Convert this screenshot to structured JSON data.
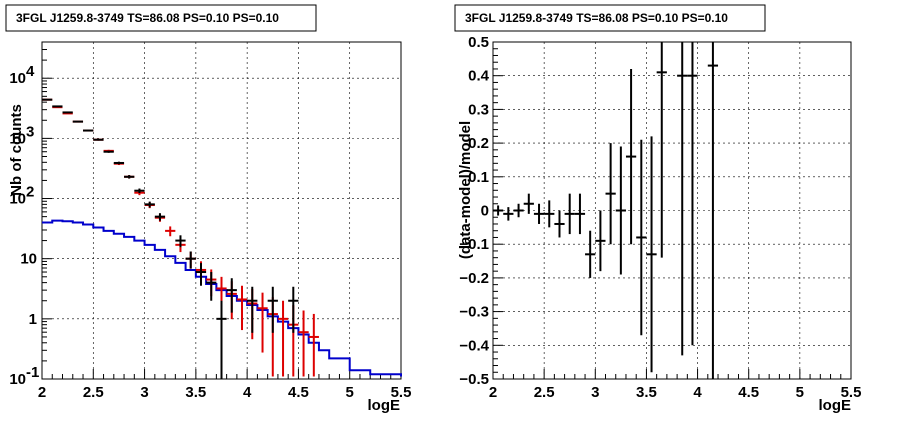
{
  "chart_data": [
    {
      "type": "scatter",
      "title": "3FGL J1259.8-3749 TS=86.08 PS=0.10 PS=0.10",
      "xlabel": "logE",
      "ylabel": "Nb of counts",
      "xlim": [
        2,
        5.5
      ],
      "ylim": [
        0.1,
        40000
      ],
      "yscale": "log",
      "grid": true,
      "x_ticks": [
        "2",
        "2.5",
        "3",
        "3.5",
        "4",
        "4.5",
        "5",
        "5.5"
      ],
      "y_ticks": [
        "10^-1",
        "1",
        "10",
        "10^2",
        "10^3",
        "10^4"
      ],
      "series": [
        {
          "kind": "data-with-errors",
          "color": "#000000",
          "points": [
            {
              "x": 2.05,
              "y": 4400
            },
            {
              "x": 2.15,
              "y": 3400
            },
            {
              "x": 2.25,
              "y": 2700
            },
            {
              "x": 2.35,
              "y": 1900
            },
            {
              "x": 2.45,
              "y": 1350
            },
            {
              "x": 2.55,
              "y": 950
            },
            {
              "x": 2.65,
              "y": 600
            },
            {
              "x": 2.75,
              "y": 390
            },
            {
              "x": 2.85,
              "y": 230
            },
            {
              "x": 2.95,
              "y": 135
            },
            {
              "x": 3.05,
              "y": 80
            },
            {
              "x": 3.15,
              "y": 50
            },
            {
              "x": 3.35,
              "y": 20
            },
            {
              "x": 3.45,
              "y": 10
            },
            {
              "x": 3.55,
              "y": 6
            },
            {
              "x": 3.65,
              "y": 4
            },
            {
              "x": 3.75,
              "y": 1
            },
            {
              "x": 3.85,
              "y": 3
            },
            {
              "x": 4.05,
              "y": 2
            },
            {
              "x": 4.25,
              "y": 2
            },
            {
              "x": 4.45,
              "y": 2
            }
          ]
        },
        {
          "kind": "model-points",
          "color": "#dd0000",
          "points": [
            {
              "x": 2.05,
              "y": 4400
            },
            {
              "x": 2.15,
              "y": 3300
            },
            {
              "x": 2.25,
              "y": 2600
            },
            {
              "x": 2.35,
              "y": 1900
            },
            {
              "x": 2.45,
              "y": 1350
            },
            {
              "x": 2.55,
              "y": 950
            },
            {
              "x": 2.65,
              "y": 620
            },
            {
              "x": 2.75,
              "y": 380
            },
            {
              "x": 2.85,
              "y": 230
            },
            {
              "x": 2.95,
              "y": 125
            },
            {
              "x": 3.05,
              "y": 78
            },
            {
              "x": 3.15,
              "y": 48
            },
            {
              "x": 3.25,
              "y": 29
            },
            {
              "x": 3.35,
              "y": 17
            },
            {
              "x": 3.45,
              "y": 10
            },
            {
              "x": 3.55,
              "y": 6.5
            },
            {
              "x": 3.65,
              "y": 4.5
            },
            {
              "x": 3.75,
              "y": 3.2
            },
            {
              "x": 3.85,
              "y": 2.6
            },
            {
              "x": 3.95,
              "y": 2.1
            },
            {
              "x": 4.05,
              "y": 1.8
            },
            {
              "x": 4.15,
              "y": 1.5
            },
            {
              "x": 4.25,
              "y": 1.2
            },
            {
              "x": 4.35,
              "y": 1.0
            },
            {
              "x": 4.45,
              "y": 0.8
            },
            {
              "x": 4.55,
              "y": 0.6
            },
            {
              "x": 4.65,
              "y": 0.5
            }
          ]
        },
        {
          "kind": "step-line",
          "color": "#0000cc",
          "points": [
            {
              "x": 2.0,
              "y": 40
            },
            {
              "x": 2.1,
              "y": 43
            },
            {
              "x": 2.2,
              "y": 42
            },
            {
              "x": 2.3,
              "y": 40
            },
            {
              "x": 2.4,
              "y": 37
            },
            {
              "x": 2.5,
              "y": 33
            },
            {
              "x": 2.6,
              "y": 29
            },
            {
              "x": 2.7,
              "y": 26
            },
            {
              "x": 2.8,
              "y": 23
            },
            {
              "x": 2.9,
              "y": 20
            },
            {
              "x": 3.0,
              "y": 17
            },
            {
              "x": 3.1,
              "y": 14
            },
            {
              "x": 3.2,
              "y": 11
            },
            {
              "x": 3.3,
              "y": 8.5
            },
            {
              "x": 3.4,
              "y": 6.5
            },
            {
              "x": 3.5,
              "y": 5
            },
            {
              "x": 3.6,
              "y": 3.8
            },
            {
              "x": 3.7,
              "y": 3
            },
            {
              "x": 3.8,
              "y": 2.4
            },
            {
              "x": 3.9,
              "y": 2
            },
            {
              "x": 4.0,
              "y": 1.7
            },
            {
              "x": 4.1,
              "y": 1.4
            },
            {
              "x": 4.2,
              "y": 1.1
            },
            {
              "x": 4.3,
              "y": 0.9
            },
            {
              "x": 4.4,
              "y": 0.7
            },
            {
              "x": 4.5,
              "y": 0.55
            },
            {
              "x": 4.6,
              "y": 0.4
            },
            {
              "x": 4.7,
              "y": 0.3
            },
            {
              "x": 4.8,
              "y": 0.22
            },
            {
              "x": 5.0,
              "y": 0.14
            },
            {
              "x": 5.2,
              "y": 0.12
            },
            {
              "x": 5.5,
              "y": 0.11
            }
          ]
        }
      ]
    },
    {
      "type": "scatter",
      "title": "3FGL J1259.8-3749 TS=86.08 PS=0.10 PS=0.10",
      "xlabel": "logE",
      "ylabel": "(data-model)/model",
      "xlim": [
        2,
        5.5
      ],
      "ylim": [
        -0.5,
        0.5
      ],
      "grid": true,
      "x_ticks": [
        "2",
        "2.5",
        "3",
        "3.5",
        "4",
        "4.5",
        "5",
        "5.5"
      ],
      "y_ticks": [
        "−0.5",
        "−0.4",
        "−0.3",
        "−0.2",
        "−0.1",
        "0",
        "0.1",
        "0.2",
        "0.3",
        "0.4",
        "0.5"
      ],
      "series": [
        {
          "kind": "residuals",
          "color": "#000000",
          "points": [
            {
              "x": 2.05,
              "y": 0.0,
              "err": 0.015
            },
            {
              "x": 2.15,
              "y": -0.01,
              "err": 0.02
            },
            {
              "x": 2.25,
              "y": 0.0,
              "err": 0.02
            },
            {
              "x": 2.35,
              "y": 0.02,
              "err": 0.03
            },
            {
              "x": 2.45,
              "y": -0.01,
              "err": 0.03
            },
            {
              "x": 2.55,
              "y": -0.01,
              "err": 0.04
            },
            {
              "x": 2.65,
              "y": -0.04,
              "err": 0.04
            },
            {
              "x": 2.75,
              "y": -0.01,
              "err": 0.06
            },
            {
              "x": 2.85,
              "y": -0.01,
              "err": 0.06
            },
            {
              "x": 2.95,
              "y": -0.13,
              "err": 0.07
            },
            {
              "x": 3.05,
              "y": -0.09,
              "err": 0.09
            },
            {
              "x": 3.15,
              "y": 0.05,
              "err": 0.15
            },
            {
              "x": 3.25,
              "y": 0.0,
              "err": 0.19
            },
            {
              "x": 3.35,
              "y": 0.16,
              "err": 0.26
            },
            {
              "x": 3.45,
              "y": -0.08,
              "err": 0.29
            },
            {
              "x": 3.55,
              "y": -0.13,
              "err": 0.35
            },
            {
              "x": 3.65,
              "y": 0.41,
              "err": 0.55
            },
            {
              "x": 3.85,
              "y": 0.4,
              "err": 0.83
            },
            {
              "x": 3.95,
              "y": 0.4,
              "err": 0.8
            },
            {
              "x": 4.15,
              "y": 0.43,
              "err": 1.0
            }
          ]
        }
      ]
    }
  ]
}
